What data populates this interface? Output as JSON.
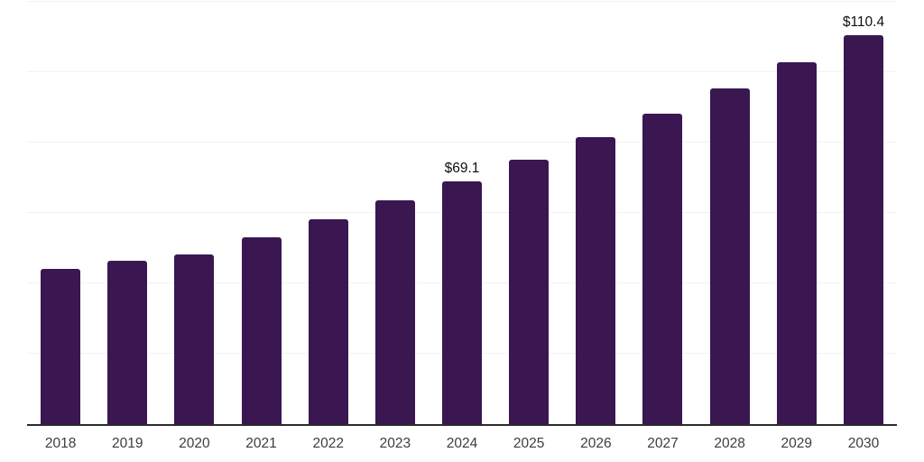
{
  "chart_data": {
    "type": "bar",
    "title": "",
    "xlabel": "",
    "ylabel": "",
    "categories": [
      "2018",
      "2019",
      "2020",
      "2021",
      "2022",
      "2023",
      "2024",
      "2025",
      "2026",
      "2027",
      "2028",
      "2029",
      "2030"
    ],
    "values": [
      44.2,
      46.4,
      48.3,
      53.0,
      58.1,
      63.5,
      69.1,
      75.2,
      81.6,
      88.2,
      95.3,
      102.9,
      110.4
    ],
    "value_labels": {
      "2024": "$69.1",
      "2030": "$110.4"
    },
    "ylim": [
      0,
      120
    ],
    "gridline_step": 20,
    "grid": true,
    "legend": false,
    "colors": {
      "bar": "#3a1751",
      "gridline": "#f2f2f2",
      "axis_line": "#2b2b2b",
      "tick_label": "#3d3d3d",
      "value_label": "#101010",
      "background": "#ffffff"
    }
  }
}
